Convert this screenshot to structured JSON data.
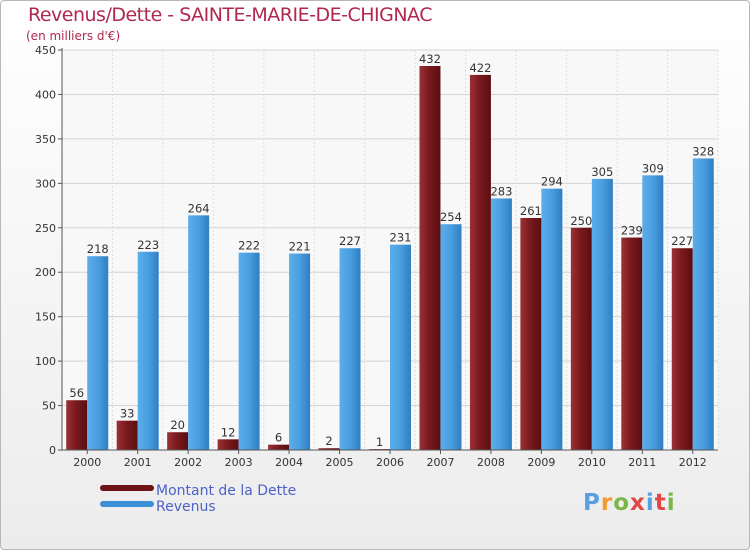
{
  "title": "Revenus/Dette - SAINTE-MARIE-DE-CHIGNAC",
  "subtitle": "(en milliers d'€)",
  "colors": {
    "debt": "#7a1a1e",
    "revenue": "#3b8fd4",
    "title": "#b02850",
    "legend_text": "#4c62c8"
  },
  "legend": {
    "debt_label": "Montant de la Dette",
    "revenue_label": "Revenus"
  },
  "logo": {
    "text": "Proxiti"
  },
  "chart_data": {
    "type": "bar",
    "title": "Revenus/Dette - SAINTE-MARIE-DE-CHIGNAC",
    "ylabel": "(en milliers d'€)",
    "xlabel": "",
    "categories": [
      "2000",
      "2001",
      "2002",
      "2003",
      "2004",
      "2005",
      "2006",
      "2007",
      "2008",
      "2009",
      "2010",
      "2011",
      "2012"
    ],
    "series": [
      {
        "name": "Montant de la Dette",
        "values": [
          56,
          33,
          20,
          12,
          6,
          2,
          1,
          432,
          422,
          261,
          250,
          239,
          227
        ]
      },
      {
        "name": "Revenus",
        "values": [
          218,
          223,
          264,
          222,
          221,
          227,
          231,
          254,
          283,
          294,
          305,
          309,
          328
        ]
      }
    ],
    "ylim": [
      0,
      450
    ],
    "yticks": [
      0,
      50,
      100,
      150,
      200,
      250,
      300,
      350,
      400,
      450
    ],
    "grid": true,
    "legend_position": "bottom-left"
  }
}
